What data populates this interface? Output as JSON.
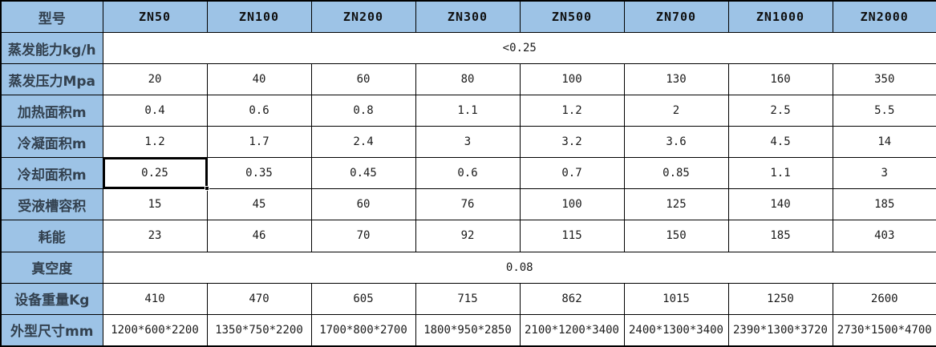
{
  "table": {
    "corner_label": "型号",
    "models": [
      "ZN50",
      "ZN100",
      "ZN200",
      "ZN300",
      "ZN500",
      "ZN700",
      "ZN1000",
      "ZN2000"
    ],
    "rows": [
      {
        "label": "蒸发能力kg/h",
        "merged": true,
        "value": "<0.25"
      },
      {
        "label": "蒸发压力Mpa",
        "values": [
          "20",
          "40",
          "60",
          "80",
          "100",
          "130",
          "160",
          "350"
        ]
      },
      {
        "label": "加热面积m",
        "values": [
          "0.4",
          "0.6",
          "0.8",
          "1.1",
          "1.2",
          "2",
          "2.5",
          "5.5"
        ]
      },
      {
        "label": "冷凝面积m",
        "values": [
          "1.2",
          "1.7",
          "2.4",
          "3",
          "3.2",
          "3.6",
          "4.5",
          "14"
        ]
      },
      {
        "label": "冷却面积m",
        "values": [
          "0.25",
          "0.35",
          "0.45",
          "0.6",
          "0.7",
          "0.85",
          "1.1",
          "3"
        ]
      },
      {
        "label": "受液槽容积",
        "values": [
          "15",
          "45",
          "60",
          "76",
          "100",
          "125",
          "140",
          "185"
        ]
      },
      {
        "label": "耗能",
        "values": [
          "23",
          "46",
          "70",
          "92",
          "115",
          "150",
          "185",
          "403"
        ]
      },
      {
        "label": "真空度",
        "merged": true,
        "value": "0.08"
      },
      {
        "label": "设备重量Kg",
        "values": [
          "410",
          "470",
          "605",
          "715",
          "862",
          "1015",
          "1250",
          "2600"
        ]
      },
      {
        "label": "外型尺寸mm",
        "values": [
          "1200*600*2200",
          "1350*750*2200",
          "1700*800*2700",
          "1800*950*2850",
          "2100*1200*3400",
          "2400*1300*3400",
          "2390*1300*3720",
          "2730*1500*4700"
        ]
      }
    ],
    "selection": {
      "row_index": 4,
      "col_index": 0,
      "row_label": "冷却面积m",
      "model": "ZN50",
      "value": "0.25"
    },
    "colors": {
      "header_bg": "#9DC3E6",
      "border": "#000000",
      "label_text": "#33414F",
      "data_text": "#1A1A1A",
      "cell_bg": "#FFFFFF"
    }
  }
}
